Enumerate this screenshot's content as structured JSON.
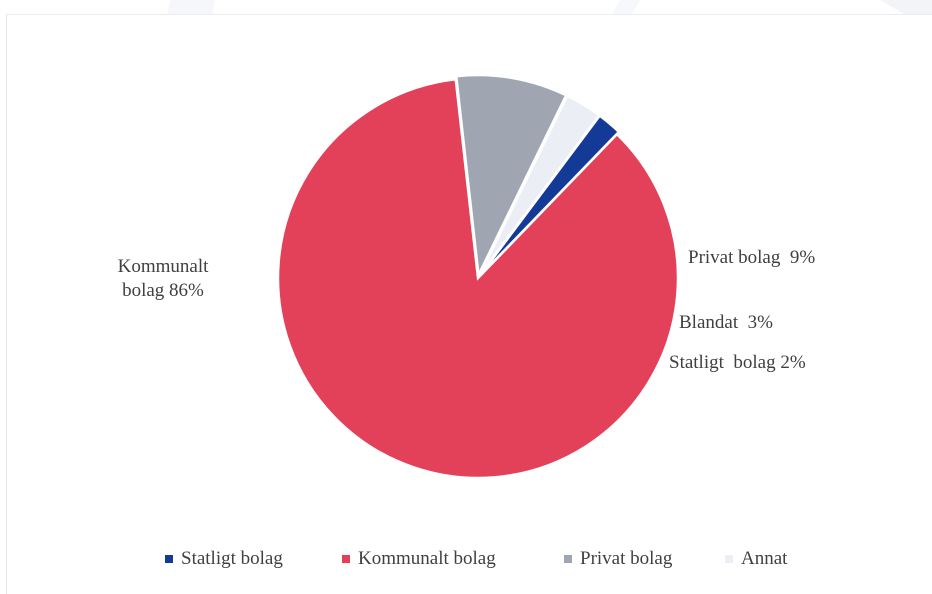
{
  "chart_data": {
    "type": "pie",
    "slices": [
      {
        "name": "Kommunalt bolag",
        "value": 86,
        "color": "#E3405A",
        "label_lines": [
          "Kommunalt",
          "bolag 86%"
        ]
      },
      {
        "name": "Privat bolag",
        "value": 9,
        "color": "#A0A5B2",
        "label_lines": [
          "Privat bolag  9%"
        ]
      },
      {
        "name": "Blandat",
        "value": 3,
        "color": "#ECEEF6",
        "label_lines": [
          "Blandat  3%"
        ]
      },
      {
        "name": "Statligt bolag",
        "value": 2,
        "color": "#123A96",
        "label_lines": [
          "Statligt  bolag 2%"
        ]
      }
    ],
    "legend": {
      "position": "bottom",
      "items": [
        {
          "label": "Statligt bolag",
          "color": "#123A96"
        },
        {
          "label": "Kommunalt bolag",
          "color": "#E3405A"
        },
        {
          "label": "Privat bolag",
          "color": "#A0A5B2"
        },
        {
          "label": "Annat",
          "color": "#ECEEF6"
        }
      ]
    }
  }
}
